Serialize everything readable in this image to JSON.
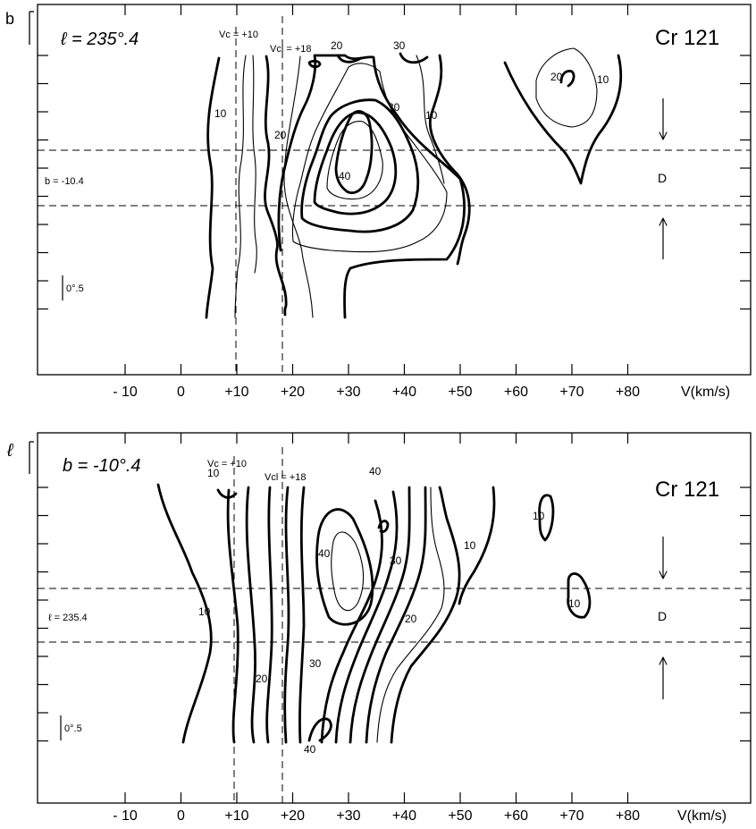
{
  "chart_data": [
    {
      "type": "contour",
      "title": "Cr 121",
      "header": "ℓ = 235°.4",
      "y_axis_symbol": "b",
      "xlabel": "V(km/s)",
      "x_ticks": [
        "- 10",
        "0",
        "+10",
        "+20",
        "+30",
        "+40",
        "+50",
        "+60",
        "+70",
        "+80"
      ],
      "xlim": [
        -20,
        90
      ],
      "reference_lines": [
        {
          "label": "Vc = +10",
          "v": 10
        },
        {
          "label": "Vcl = +18",
          "v": 18
        }
      ],
      "cut_label": "b = -10.4",
      "scale_label": "0°.5",
      "region_label": "D",
      "contour_levels": [
        10,
        20,
        30,
        40
      ],
      "contour_labels": [
        "10",
        "20",
        "30",
        "40",
        "10",
        "20",
        "30",
        "10",
        "20",
        "10"
      ]
    },
    {
      "type": "contour",
      "title": "Cr 121",
      "header": "b = -10°.4",
      "y_axis_symbol": "ℓ",
      "xlabel": "V(km/s)",
      "x_ticks": [
        "- 10",
        "0",
        "+10",
        "+20",
        "+30",
        "+40",
        "+50",
        "+60",
        "+70",
        "+80"
      ],
      "xlim": [
        -20,
        90
      ],
      "reference_lines": [
        {
          "label": "Vc = +10",
          "v": 10
        },
        {
          "label": "Vcl = +18",
          "v": 18
        }
      ],
      "cut_label": "ℓ = 235.4",
      "scale_label": "0°.5",
      "region_label": "D",
      "contour_levels": [
        10,
        20,
        30,
        40
      ],
      "contour_labels": [
        "10",
        "40",
        "40",
        "30",
        "10",
        "10",
        "20",
        "10",
        "30",
        "20",
        "40",
        "10"
      ]
    }
  ]
}
